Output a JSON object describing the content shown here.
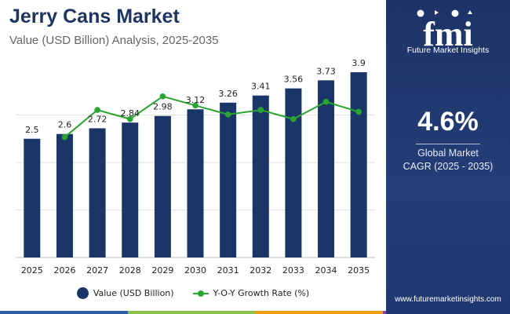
{
  "header": {
    "title": "Jerry Cans Market",
    "subtitle": "Value (USD Billion) Analysis, 2025-2035"
  },
  "chart_data": {
    "type": "bar",
    "categories": [
      "2025",
      "2026",
      "2027",
      "2028",
      "2029",
      "2030",
      "2031",
      "2032",
      "2033",
      "2034",
      "2035"
    ],
    "series": [
      {
        "name": "Value (USD Billion)",
        "type": "bar",
        "color": "#1a3668",
        "values": [
          2.5,
          2.6,
          2.72,
          2.84,
          2.98,
          3.12,
          3.26,
          3.41,
          3.56,
          3.73,
          3.9
        ],
        "labels": [
          "2.5",
          "2.6",
          "2.72",
          "2.84",
          "2.98",
          "3.12",
          "3.26",
          "3.41",
          "3.56",
          "3.73",
          "3.9"
        ]
      },
      {
        "name": "Y-O-Y Growth Rate (%)",
        "type": "line",
        "color": "#2aa532",
        "values": [
          null,
          4.0,
          4.6,
          4.4,
          4.9,
          4.7,
          4.5,
          4.6,
          4.4,
          4.78,
          4.56
        ]
      }
    ],
    "ylim": [
      0,
      5
    ],
    "y2lim": [
      3.6,
      5.2
    ],
    "grid": true,
    "legend": "bottom-center"
  },
  "legend": {
    "bar_label": "Value (USD Billion)",
    "line_label": "Y-O-Y Growth Rate (%)"
  },
  "panel": {
    "logo_text": "fmi",
    "logo_tagline": "Future Market Insights",
    "cagr_value": "4.6%",
    "cagr_label_line1": "Global Market",
    "cagr_label_line2": "CAGR (2025 - 2035)",
    "website": "www.futuremarketinsights.com"
  },
  "colors": {
    "title": "#1e3461",
    "bar": "#1a3668",
    "line": "#2aa532",
    "panel": "#1c3366",
    "bottom_bar": [
      "#2f5ba8",
      "#8bc34a",
      "#f39c12",
      "#8e44ad"
    ]
  }
}
